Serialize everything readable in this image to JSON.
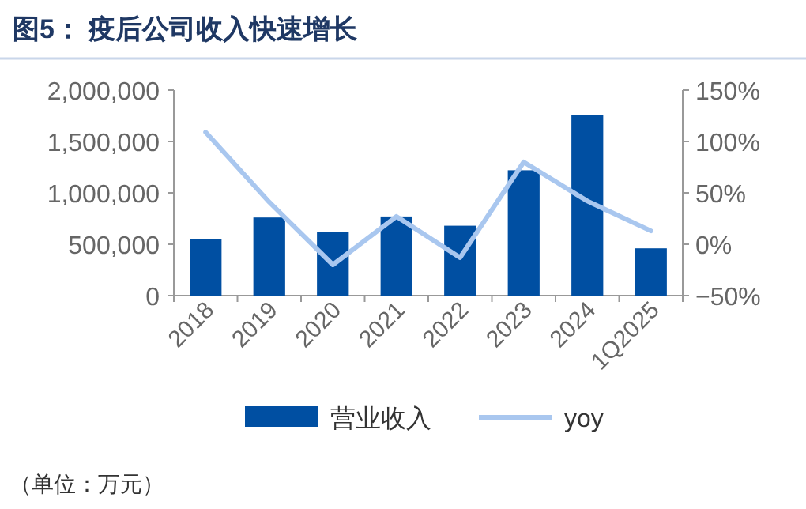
{
  "chart_data": {
    "type": "bar",
    "title": "图5：  疫后公司收入快速增长",
    "categories": [
      "2018",
      "2019",
      "2020",
      "2021",
      "2022",
      "2023",
      "2024",
      "1Q2025"
    ],
    "series": [
      {
        "name": "营业收入",
        "color": "#004fa2",
        "values": [
          550000,
          760000,
          620000,
          770000,
          680000,
          1220000,
          1760000,
          460000
        ]
      },
      {
        "name": "yoy",
        "type": "line",
        "axis": "y2",
        "color": "#a9c7ef",
        "values": [
          109,
          41,
          -20,
          27,
          -13,
          80,
          42,
          13
        ]
      }
    ],
    "ylim": [
      0,
      2000000
    ],
    "yticks": [
      {
        "value": 0,
        "label": "0"
      },
      {
        "value": 500000,
        "label": "500,000"
      },
      {
        "value": 1000000,
        "label": "1,000,000"
      },
      {
        "value": 1500000,
        "label": "1,500,000"
      },
      {
        "value": 2000000,
        "label": "2,000,000"
      }
    ],
    "y2lim": [
      -50,
      150
    ],
    "y2ticks": [
      {
        "value": -50,
        "label": "−50%"
      },
      {
        "value": 0,
        "label": "0%"
      },
      {
        "value": 50,
        "label": "50%"
      },
      {
        "value": 100,
        "label": "100%"
      },
      {
        "value": 150,
        "label": "150%"
      }
    ],
    "legend": "bottom",
    "grid": false,
    "annotations": [
      "（单位：万元）"
    ]
  }
}
